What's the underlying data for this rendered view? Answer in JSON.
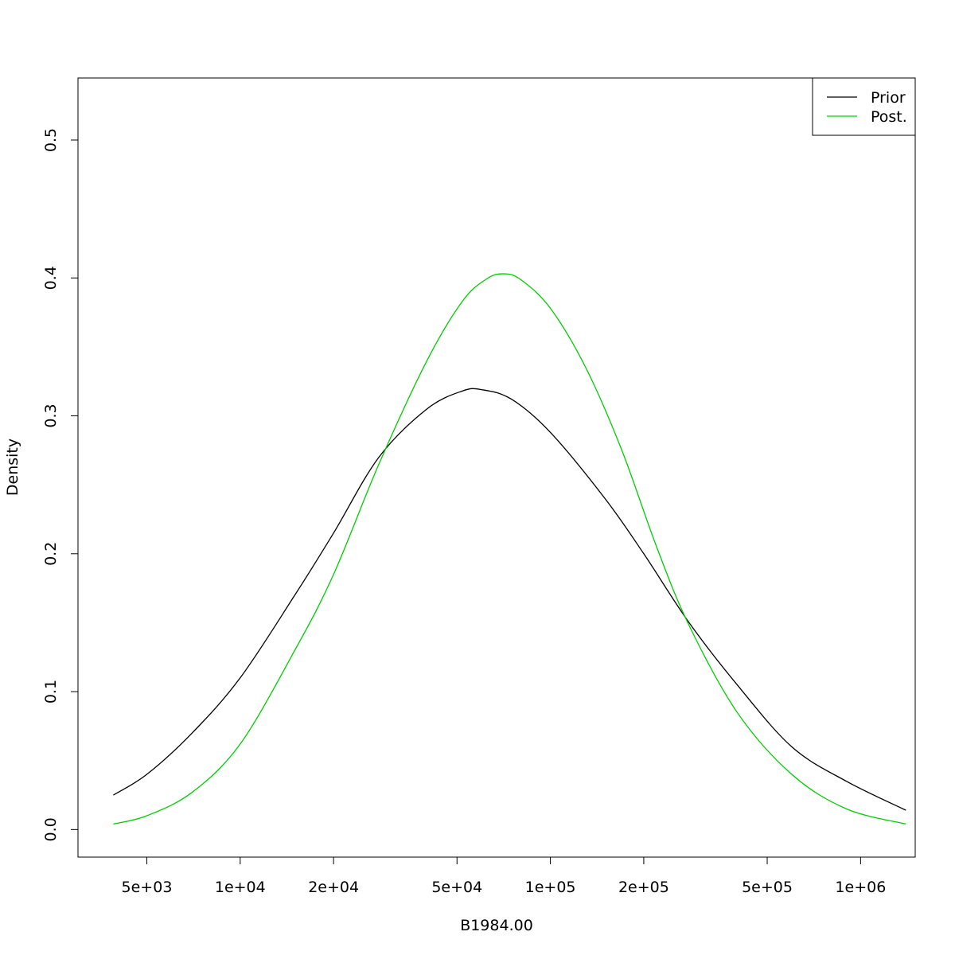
{
  "chart_data": {
    "type": "line",
    "title": "",
    "xlabel": "B1984.00",
    "ylabel": "Density",
    "x_scale": "log",
    "xlim": [
      3000,
      1500000
    ],
    "ylim": [
      -0.02,
      0.545
    ],
    "x_ticks": [
      {
        "value": 5000,
        "label": "5e+03"
      },
      {
        "value": 10000,
        "label": "1e+04"
      },
      {
        "value": 20000,
        "label": "2e+04"
      },
      {
        "value": 50000,
        "label": "5e+04"
      },
      {
        "value": 100000,
        "label": "1e+05"
      },
      {
        "value": 200000,
        "label": "2e+05"
      },
      {
        "value": 500000,
        "label": "5e+05"
      },
      {
        "value": 1000000,
        "label": "1e+06"
      }
    ],
    "y_ticks": [
      {
        "value": 0.0,
        "label": "0.0"
      },
      {
        "value": 0.1,
        "label": "0.1"
      },
      {
        "value": 0.2,
        "label": "0.2"
      },
      {
        "value": 0.3,
        "label": "0.3"
      },
      {
        "value": 0.4,
        "label": "0.4"
      },
      {
        "value": 0.5,
        "label": "0.5"
      }
    ],
    "grid": false,
    "legend_position": "top-right",
    "series": [
      {
        "name": "Prior",
        "color": "#000000",
        "x": [
          3900,
          5000,
          7000,
          10000,
          15000,
          20000,
          28000,
          40000,
          52000,
          60000,
          75000,
          100000,
          150000,
          200000,
          280000,
          400000,
          600000,
          900000,
          1400000
        ],
        "y": [
          0.025,
          0.04,
          0.07,
          0.11,
          0.17,
          0.215,
          0.27,
          0.305,
          0.318,
          0.319,
          0.312,
          0.288,
          0.24,
          0.2,
          0.15,
          0.105,
          0.06,
          0.035,
          0.014
        ]
      },
      {
        "name": "Post.",
        "color": "#00cd00",
        "x": [
          3900,
          5000,
          7000,
          10000,
          15000,
          20000,
          28000,
          40000,
          52000,
          62000,
          70000,
          80000,
          100000,
          130000,
          170000,
          220000,
          280000,
          400000,
          600000,
          900000,
          1400000
        ],
        "y": [
          0.004,
          0.01,
          0.027,
          0.062,
          0.13,
          0.185,
          0.265,
          0.34,
          0.383,
          0.399,
          0.403,
          0.399,
          0.378,
          0.335,
          0.275,
          0.205,
          0.148,
          0.085,
          0.04,
          0.015,
          0.004
        ]
      }
    ]
  }
}
